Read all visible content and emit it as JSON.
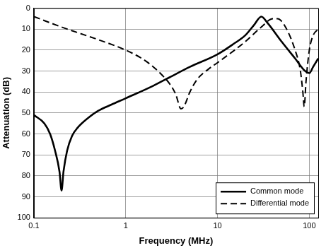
{
  "chart_data": {
    "type": "line",
    "x_label": "Frequency (MHz)",
    "y_label": "Attenuation (dB)",
    "log": "x",
    "grid": true,
    "legend": "lower right",
    "xlim": [
      0.1,
      125
    ],
    "xticks": [
      0.1,
      1,
      10,
      100
    ],
    "ylim": [
      100,
      0
    ],
    "yticks": [
      0,
      10,
      20,
      30,
      40,
      50,
      60,
      70,
      80,
      90,
      100
    ],
    "series": [
      {
        "name": "Common mode",
        "color": "#000000",
        "line_style": "solid",
        "x": [
          0.1,
          0.13,
          0.15,
          0.17,
          0.19,
          0.2,
          0.21,
          0.23,
          0.26,
          0.3,
          0.4,
          0.5,
          0.7,
          1,
          2,
          3,
          5,
          10,
          15,
          20,
          25,
          30,
          35,
          50,
          70,
          90,
          100,
          110,
          125
        ],
        "values": [
          51,
          55,
          60,
          68,
          78,
          87,
          78,
          68,
          61,
          57,
          52,
          49,
          46,
          43,
          37,
          33,
          28,
          22,
          17,
          13,
          8,
          4,
          7,
          16,
          24,
          30,
          31,
          28,
          24
        ]
      },
      {
        "name": "Differential mode",
        "color": "#000000",
        "line_style": "dashed",
        "x": [
          0.1,
          0.2,
          0.5,
          1,
          1.5,
          2,
          2.5,
          3,
          3.5,
          4,
          4.3,
          5,
          6,
          8,
          10,
          20,
          30,
          40,
          45,
          55,
          70,
          80,
          85,
          88,
          92,
          100,
          110,
          125
        ],
        "values": [
          4,
          9,
          15,
          20,
          24,
          28,
          32,
          36,
          41,
          48,
          47,
          40,
          34,
          29,
          26,
          16,
          9,
          5,
          5,
          9,
          20,
          30,
          40,
          47,
          35,
          20,
          13,
          10
        ]
      }
    ]
  }
}
